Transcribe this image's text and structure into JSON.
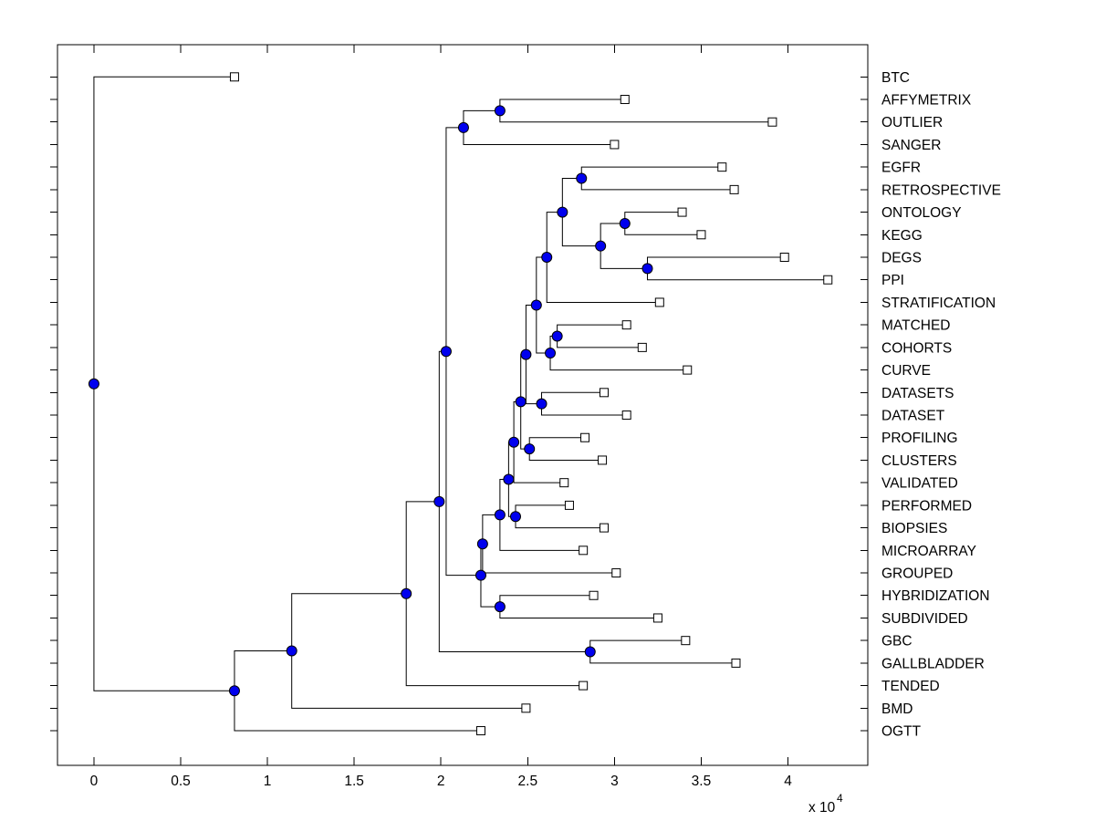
{
  "figure": {
    "background": "#ffffff",
    "line_color": "#000000",
    "node_marker": {
      "shape": "circle",
      "fill": "#0000ee",
      "edge": "#000000",
      "radius": 5.5
    },
    "leaf_marker": {
      "shape": "square",
      "fill": "#ffffff",
      "edge": "#000000",
      "size": 9
    }
  },
  "axis": {
    "xlim": [
      -2100,
      44600
    ],
    "x_ticks": [
      0,
      5000,
      10000,
      15000,
      20000,
      25000,
      30000,
      35000,
      40000
    ],
    "x_tick_labels": [
      "0",
      "0.5",
      "1",
      "1.5",
      "2",
      "2.5",
      "3",
      "3.5",
      "4"
    ],
    "multiplier_label": "x 10",
    "multiplier_exp": "4"
  },
  "chart_data": {
    "type": "dendrogram",
    "orientation": "root-left-leaves-right",
    "xlabel": "",
    "ylabel": "",
    "title": "",
    "unit_scale": 10000,
    "leaves": [
      {
        "label": "BTC",
        "distance": 8100
      },
      {
        "label": "AFFYMETRIX",
        "distance": 30600
      },
      {
        "label": "OUTLIER",
        "distance": 39100
      },
      {
        "label": "SANGER",
        "distance": 30000
      },
      {
        "label": "EGFR",
        "distance": 36200
      },
      {
        "label": "RETROSPECTIVE",
        "distance": 36900
      },
      {
        "label": "ONTOLOGY",
        "distance": 33900
      },
      {
        "label": "KEGG",
        "distance": 35000
      },
      {
        "label": "DEGS",
        "distance": 39800
      },
      {
        "label": "PPI",
        "distance": 42300
      },
      {
        "label": "STRATIFICATION",
        "distance": 32600
      },
      {
        "label": "MATCHED",
        "distance": 30700
      },
      {
        "label": "COHORTS",
        "distance": 31600
      },
      {
        "label": "CURVE",
        "distance": 34200
      },
      {
        "label": "DATASETS",
        "distance": 29400
      },
      {
        "label": "DATASET",
        "distance": 30700
      },
      {
        "label": "PROFILING",
        "distance": 28300
      },
      {
        "label": "CLUSTERS",
        "distance": 29300
      },
      {
        "label": "VALIDATED",
        "distance": 27100
      },
      {
        "label": "PERFORMED",
        "distance": 27400
      },
      {
        "label": "BIOPSIES",
        "distance": 29400
      },
      {
        "label": "MICROARRAY",
        "distance": 28200
      },
      {
        "label": "GROUPED",
        "distance": 30100
      },
      {
        "label": "HYBRIDIZATION",
        "distance": 28800
      },
      {
        "label": "SUBDIVIDED",
        "distance": 32500
      },
      {
        "label": "GBC",
        "distance": 34100
      },
      {
        "label": "GALLBLADDER",
        "distance": 37000
      },
      {
        "label": "TENDED",
        "distance": 28200
      },
      {
        "label": "BMD",
        "distance": 24900
      },
      {
        "label": "OGTT",
        "distance": 22300
      }
    ],
    "internal_nodes": [
      {
        "id": "n_aff_out",
        "children": [
          "AFFYMETRIX",
          "OUTLIER"
        ],
        "distance": 23400
      },
      {
        "id": "n_aff_san",
        "children": [
          "n_aff_out",
          "SANGER"
        ],
        "distance": 21300
      },
      {
        "id": "n_egfr_retro",
        "children": [
          "EGFR",
          "RETROSPECTIVE"
        ],
        "distance": 28100
      },
      {
        "id": "n_onto_kegg",
        "children": [
          "ONTOLOGY",
          "KEGG"
        ],
        "distance": 30600
      },
      {
        "id": "n_degs_ppi",
        "children": [
          "DEGS",
          "PPI"
        ],
        "distance": 31900
      },
      {
        "id": "n_ok_dp",
        "children": [
          "n_onto_kegg",
          "n_degs_ppi"
        ],
        "distance": 29200
      },
      {
        "id": "n_er_okdp",
        "children": [
          "n_egfr_retro",
          "n_ok_dp"
        ],
        "distance": 27000
      },
      {
        "id": "n_strat",
        "children": [
          "n_er_okdp",
          "STRATIFICATION"
        ],
        "distance": 26100
      },
      {
        "id": "n_match_coh",
        "children": [
          "MATCHED",
          "COHORTS"
        ],
        "distance": 26700
      },
      {
        "id": "n_mc_curve",
        "children": [
          "n_match_coh",
          "CURVE"
        ],
        "distance": 26300
      },
      {
        "id": "n_strat_curve",
        "children": [
          "n_strat",
          "n_mc_curve"
        ],
        "distance": 25500
      },
      {
        "id": "n_dsets",
        "children": [
          "DATASETS",
          "DATASET"
        ],
        "distance": 25800
      },
      {
        "id": "n_sc_ds",
        "children": [
          "n_strat_curve",
          "n_dsets"
        ],
        "distance": 24900
      },
      {
        "id": "n_prof_clust",
        "children": [
          "PROFILING",
          "CLUSTERS"
        ],
        "distance": 25100
      },
      {
        "id": "n_scds_pc",
        "children": [
          "n_sc_ds",
          "n_prof_clust"
        ],
        "distance": 24600
      },
      {
        "id": "n_valid",
        "children": [
          "n_scds_pc",
          "VALIDATED"
        ],
        "distance": 24200
      },
      {
        "id": "n_perf_biop",
        "children": [
          "PERFORMED",
          "BIOPSIES"
        ],
        "distance": 24300
      },
      {
        "id": "n_v_pb",
        "children": [
          "n_valid",
          "n_perf_biop"
        ],
        "distance": 23900
      },
      {
        "id": "n_micro",
        "children": [
          "n_v_pb",
          "MICROARRAY"
        ],
        "distance": 23400
      },
      {
        "id": "n_group",
        "children": [
          "n_micro",
          "GROUPED"
        ],
        "distance": 22400
      },
      {
        "id": "n_hyb_sub",
        "children": [
          "HYBRIDIZATION",
          "SUBDIVIDED"
        ],
        "distance": 23400
      },
      {
        "id": "n_g_hs",
        "children": [
          "n_group",
          "n_hyb_sub"
        ],
        "distance": 22300
      },
      {
        "id": "n_upper",
        "children": [
          "n_aff_san",
          "n_g_hs"
        ],
        "distance": 20300
      },
      {
        "id": "n_gbc_gall",
        "children": [
          "GBC",
          "GALLBLADDER"
        ],
        "distance": 28600
      },
      {
        "id": "n_up_gg",
        "children": [
          "n_upper",
          "n_gbc_gall"
        ],
        "distance": 19900
      },
      {
        "id": "n_tended",
        "children": [
          "n_up_gg",
          "TENDED"
        ],
        "distance": 18000
      },
      {
        "id": "n_bmd",
        "children": [
          "n_tended",
          "BMD"
        ],
        "distance": 11400
      },
      {
        "id": "n_ogtt",
        "children": [
          "n_bmd",
          "OGTT"
        ],
        "distance": 8100
      },
      {
        "id": "root",
        "children": [
          "BTC",
          "n_ogtt"
        ],
        "distance": 0
      }
    ]
  }
}
